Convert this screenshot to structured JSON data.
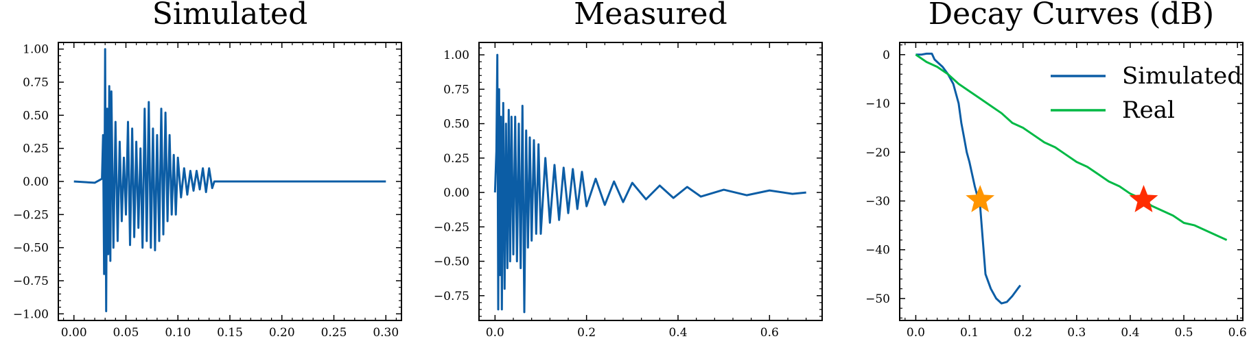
{
  "chart_data": [
    {
      "type": "line",
      "title": "Simulated",
      "xlabel": "",
      "ylabel": "",
      "xlim": [
        -0.015,
        0.315
      ],
      "ylim": [
        -1.05,
        1.05
      ],
      "xticks": [
        0.0,
        0.05,
        0.1,
        0.15,
        0.2,
        0.25,
        0.3
      ],
      "xtick_labels": [
        "0.00",
        "0.05",
        "0.10",
        "0.15",
        "0.20",
        "0.25",
        "0.30"
      ],
      "yticks": [
        1.0,
        0.75,
        0.5,
        0.25,
        0.0,
        -0.25,
        -0.5,
        -0.75,
        -1.0
      ],
      "ytick_labels": [
        "1.00",
        "0.75",
        "0.50",
        "0.25",
        "0.00",
        "−0.25",
        "−0.50",
        "−0.75",
        "−1.00"
      ],
      "grid": false,
      "series": [
        {
          "color": "#0c5da5",
          "x": [
            0.0,
            0.02,
            0.027,
            0.028,
            0.029,
            0.03,
            0.031,
            0.032,
            0.033,
            0.034,
            0.035,
            0.036,
            0.038,
            0.04,
            0.042,
            0.044,
            0.046,
            0.048,
            0.05,
            0.052,
            0.054,
            0.056,
            0.058,
            0.06,
            0.062,
            0.064,
            0.066,
            0.068,
            0.07,
            0.072,
            0.074,
            0.076,
            0.078,
            0.08,
            0.082,
            0.084,
            0.086,
            0.088,
            0.09,
            0.092,
            0.094,
            0.096,
            0.098,
            0.1,
            0.103,
            0.106,
            0.109,
            0.112,
            0.115,
            0.118,
            0.121,
            0.124,
            0.127,
            0.13,
            0.133,
            0.135,
            0.2,
            0.3
          ],
          "y": [
            0.0,
            -0.01,
            0.02,
            0.35,
            -0.7,
            1.0,
            -0.98,
            0.55,
            -0.55,
            0.72,
            -0.6,
            0.68,
            -0.5,
            0.45,
            -0.45,
            0.3,
            -0.3,
            0.18,
            -0.25,
            0.45,
            -0.48,
            0.4,
            -0.42,
            0.3,
            -0.35,
            0.25,
            -0.5,
            0.55,
            -0.45,
            0.6,
            -0.5,
            0.4,
            -0.52,
            0.35,
            -0.45,
            0.55,
            -0.4,
            0.52,
            -0.3,
            0.35,
            -0.25,
            0.2,
            -0.25,
            0.18,
            -0.12,
            0.1,
            -0.1,
            0.08,
            -0.07,
            0.08,
            -0.06,
            0.1,
            -0.08,
            0.1,
            -0.05,
            0.0,
            0.0,
            0.0
          ]
        }
      ]
    },
    {
      "type": "line",
      "title": "Measured",
      "xlabel": "",
      "ylabel": "",
      "xlim": [
        -0.035,
        0.715
      ],
      "ylim": [
        -0.93,
        1.09
      ],
      "xticks": [
        0.0,
        0.2,
        0.4,
        0.6
      ],
      "xtick_labels": [
        "0.0",
        "0.2",
        "0.4",
        "0.6"
      ],
      "yticks": [
        1.0,
        0.75,
        0.5,
        0.25,
        0.0,
        -0.25,
        -0.5,
        -0.75
      ],
      "ytick_labels": [
        "1.00",
        "0.75",
        "0.50",
        "0.25",
        "0.00",
        "−0.25",
        "−0.50",
        "−0.75"
      ],
      "grid": false,
      "series": [
        {
          "color": "#0c5da5",
          "x": [
            0.0,
            0.003,
            0.005,
            0.007,
            0.009,
            0.011,
            0.013,
            0.015,
            0.018,
            0.021,
            0.024,
            0.027,
            0.03,
            0.033,
            0.036,
            0.04,
            0.044,
            0.048,
            0.052,
            0.056,
            0.06,
            0.064,
            0.068,
            0.072,
            0.076,
            0.08,
            0.085,
            0.09,
            0.095,
            0.1,
            0.11,
            0.12,
            0.13,
            0.14,
            0.15,
            0.16,
            0.17,
            0.18,
            0.19,
            0.2,
            0.22,
            0.24,
            0.26,
            0.28,
            0.3,
            0.33,
            0.36,
            0.39,
            0.42,
            0.45,
            0.5,
            0.55,
            0.6,
            0.65,
            0.68
          ],
          "y": [
            0.0,
            0.3,
            1.0,
            -0.85,
            0.75,
            -0.6,
            0.55,
            -0.85,
            0.65,
            -0.7,
            0.5,
            -0.55,
            0.6,
            -0.5,
            0.55,
            -0.45,
            0.55,
            -0.5,
            0.5,
            -0.55,
            0.63,
            -0.87,
            0.45,
            -0.4,
            0.4,
            -0.35,
            0.38,
            -0.3,
            0.35,
            -0.3,
            0.25,
            -0.22,
            0.2,
            -0.2,
            0.18,
            -0.15,
            0.17,
            -0.12,
            0.15,
            -0.1,
            0.1,
            -0.09,
            0.08,
            -0.07,
            0.07,
            -0.05,
            0.05,
            -0.04,
            0.04,
            -0.03,
            0.02,
            -0.02,
            0.015,
            -0.01,
            0.0
          ]
        }
      ]
    },
    {
      "type": "line",
      "title": "Decay Curves (dB)",
      "xlabel": "",
      "ylabel": "",
      "xlim": [
        -0.03,
        0.61
      ],
      "ylim": [
        -54.5,
        2.5
      ],
      "xticks": [
        0.0,
        0.1,
        0.2,
        0.3,
        0.4,
        0.5,
        0.6
      ],
      "xtick_labels": [
        "0.0",
        "0.1",
        "0.2",
        "0.3",
        "0.4",
        "0.5",
        "0.6"
      ],
      "yticks": [
        0,
        -10,
        -20,
        -30,
        -40,
        -50
      ],
      "ytick_labels": [
        "0",
        "−10",
        "−20",
        "−30",
        "−40",
        "−50"
      ],
      "grid": false,
      "legend_position": "top-right",
      "series": [
        {
          "name": "Simulated",
          "color": "#0c5da5",
          "x": [
            0.0,
            0.01,
            0.02,
            0.03,
            0.035,
            0.04,
            0.05,
            0.06,
            0.07,
            0.08,
            0.085,
            0.09,
            0.095,
            0.1,
            0.105,
            0.11,
            0.115,
            0.12,
            0.125,
            0.13,
            0.14,
            0.15,
            0.16,
            0.17,
            0.18,
            0.19,
            0.195
          ],
          "y": [
            0.0,
            0.0,
            0.2,
            0.2,
            -1.0,
            -1.5,
            -2.5,
            -4.0,
            -6.0,
            -10.0,
            -14.0,
            -17.0,
            -20.0,
            -22.0,
            -24.5,
            -27.0,
            -29.0,
            -31.0,
            -38.0,
            -45.0,
            -48.0,
            -50.0,
            -51.0,
            -50.7,
            -49.5,
            -48.0,
            -47.3
          ]
        },
        {
          "name": "Real",
          "color": "#00b945",
          "x": [
            0.0,
            0.02,
            0.04,
            0.06,
            0.08,
            0.1,
            0.12,
            0.14,
            0.16,
            0.18,
            0.2,
            0.22,
            0.24,
            0.26,
            0.28,
            0.3,
            0.32,
            0.34,
            0.36,
            0.38,
            0.4,
            0.42,
            0.44,
            0.46,
            0.48,
            0.5,
            0.52,
            0.54,
            0.56,
            0.58
          ],
          "y": [
            0.0,
            -1.5,
            -2.5,
            -4.0,
            -6.0,
            -7.5,
            -9.0,
            -10.5,
            -12.0,
            -14.0,
            -15.0,
            -16.5,
            -18.0,
            -19.0,
            -20.5,
            -22.0,
            -23.0,
            -24.5,
            -26.0,
            -27.0,
            -28.5,
            -29.5,
            -31.0,
            -32.0,
            -33.0,
            -34.5,
            -35.0,
            -36.0,
            -37.0,
            -38.0
          ]
        }
      ],
      "markers": [
        {
          "shape": "star",
          "x": 0.12,
          "y": -29.8,
          "color": "#ff9500"
        },
        {
          "shape": "star",
          "x": 0.425,
          "y": -29.8,
          "color": "#ff2c00"
        }
      ]
    }
  ]
}
